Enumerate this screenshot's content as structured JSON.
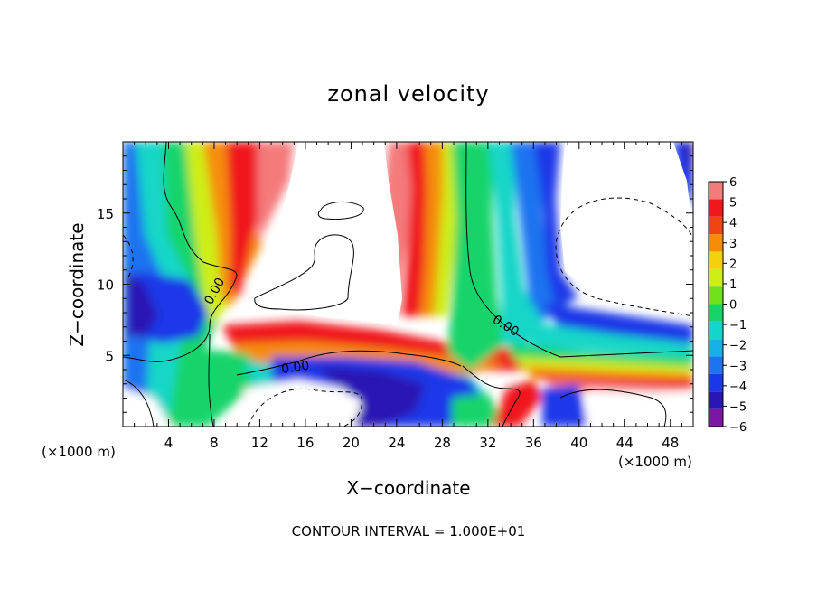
{
  "chart_data": {
    "type": "heatmap",
    "title": "zonal velocity",
    "xlabel": "X−coordinate",
    "ylabel": "Z−coordinate",
    "x_unit_left": "(×1000 m)",
    "x_unit_right": "(×1000 m)",
    "footer": "CONTOUR INTERVAL = 1.000E+01",
    "xlim": [
      0,
      50
    ],
    "ylim": [
      0,
      20
    ],
    "x_ticks": [
      4,
      8,
      12,
      16,
      20,
      24,
      28,
      32,
      36,
      40,
      44,
      48
    ],
    "y_ticks": [
      5,
      10,
      15
    ],
    "contour_label": "0.00",
    "colorbar": {
      "levels": [
        -6,
        -5,
        -4,
        -3,
        -2,
        -1,
        0,
        1,
        2,
        3,
        4,
        5,
        6
      ],
      "labels": [
        "−6",
        "−5",
        "−4",
        "−3",
        "−2",
        "−1",
        "0",
        "1",
        "2",
        "3",
        "4",
        "5",
        "6"
      ],
      "colors": [
        "#7d15a6",
        "#2a16b4",
        "#1a37e8",
        "#1e73f0",
        "#17b1e8",
        "#12d6c8",
        "#17d46a",
        "#6fe21c",
        "#cdee16",
        "#f3d20d",
        "#f58d08",
        "#f04413",
        "#f0181e",
        "#f47a7c"
      ]
    }
  }
}
